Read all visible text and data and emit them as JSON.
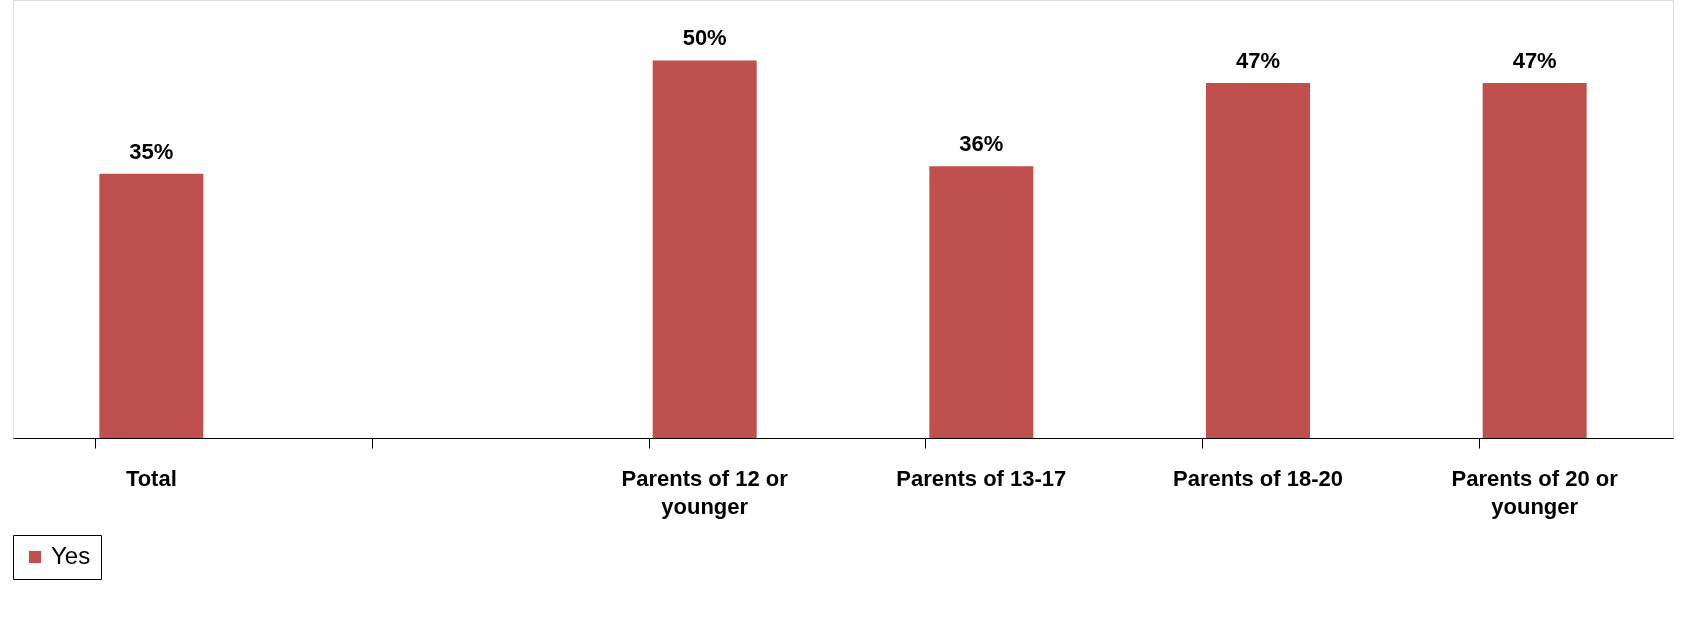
{
  "chart_data": {
    "type": "bar",
    "categories": [
      "Total",
      null,
      "Parents of 12 or younger",
      "Parents of 13-17",
      "Parents of 18-20",
      "Parents of 20 or younger"
    ],
    "series": [
      {
        "name": "Yes",
        "color": "#c0504d",
        "values": [
          35,
          null,
          50,
          36,
          47,
          47
        ],
        "value_labels": [
          "35%",
          null,
          "50%",
          "36%",
          "47%",
          "47%"
        ]
      }
    ],
    "legend": "bottom",
    "grid": false
  }
}
